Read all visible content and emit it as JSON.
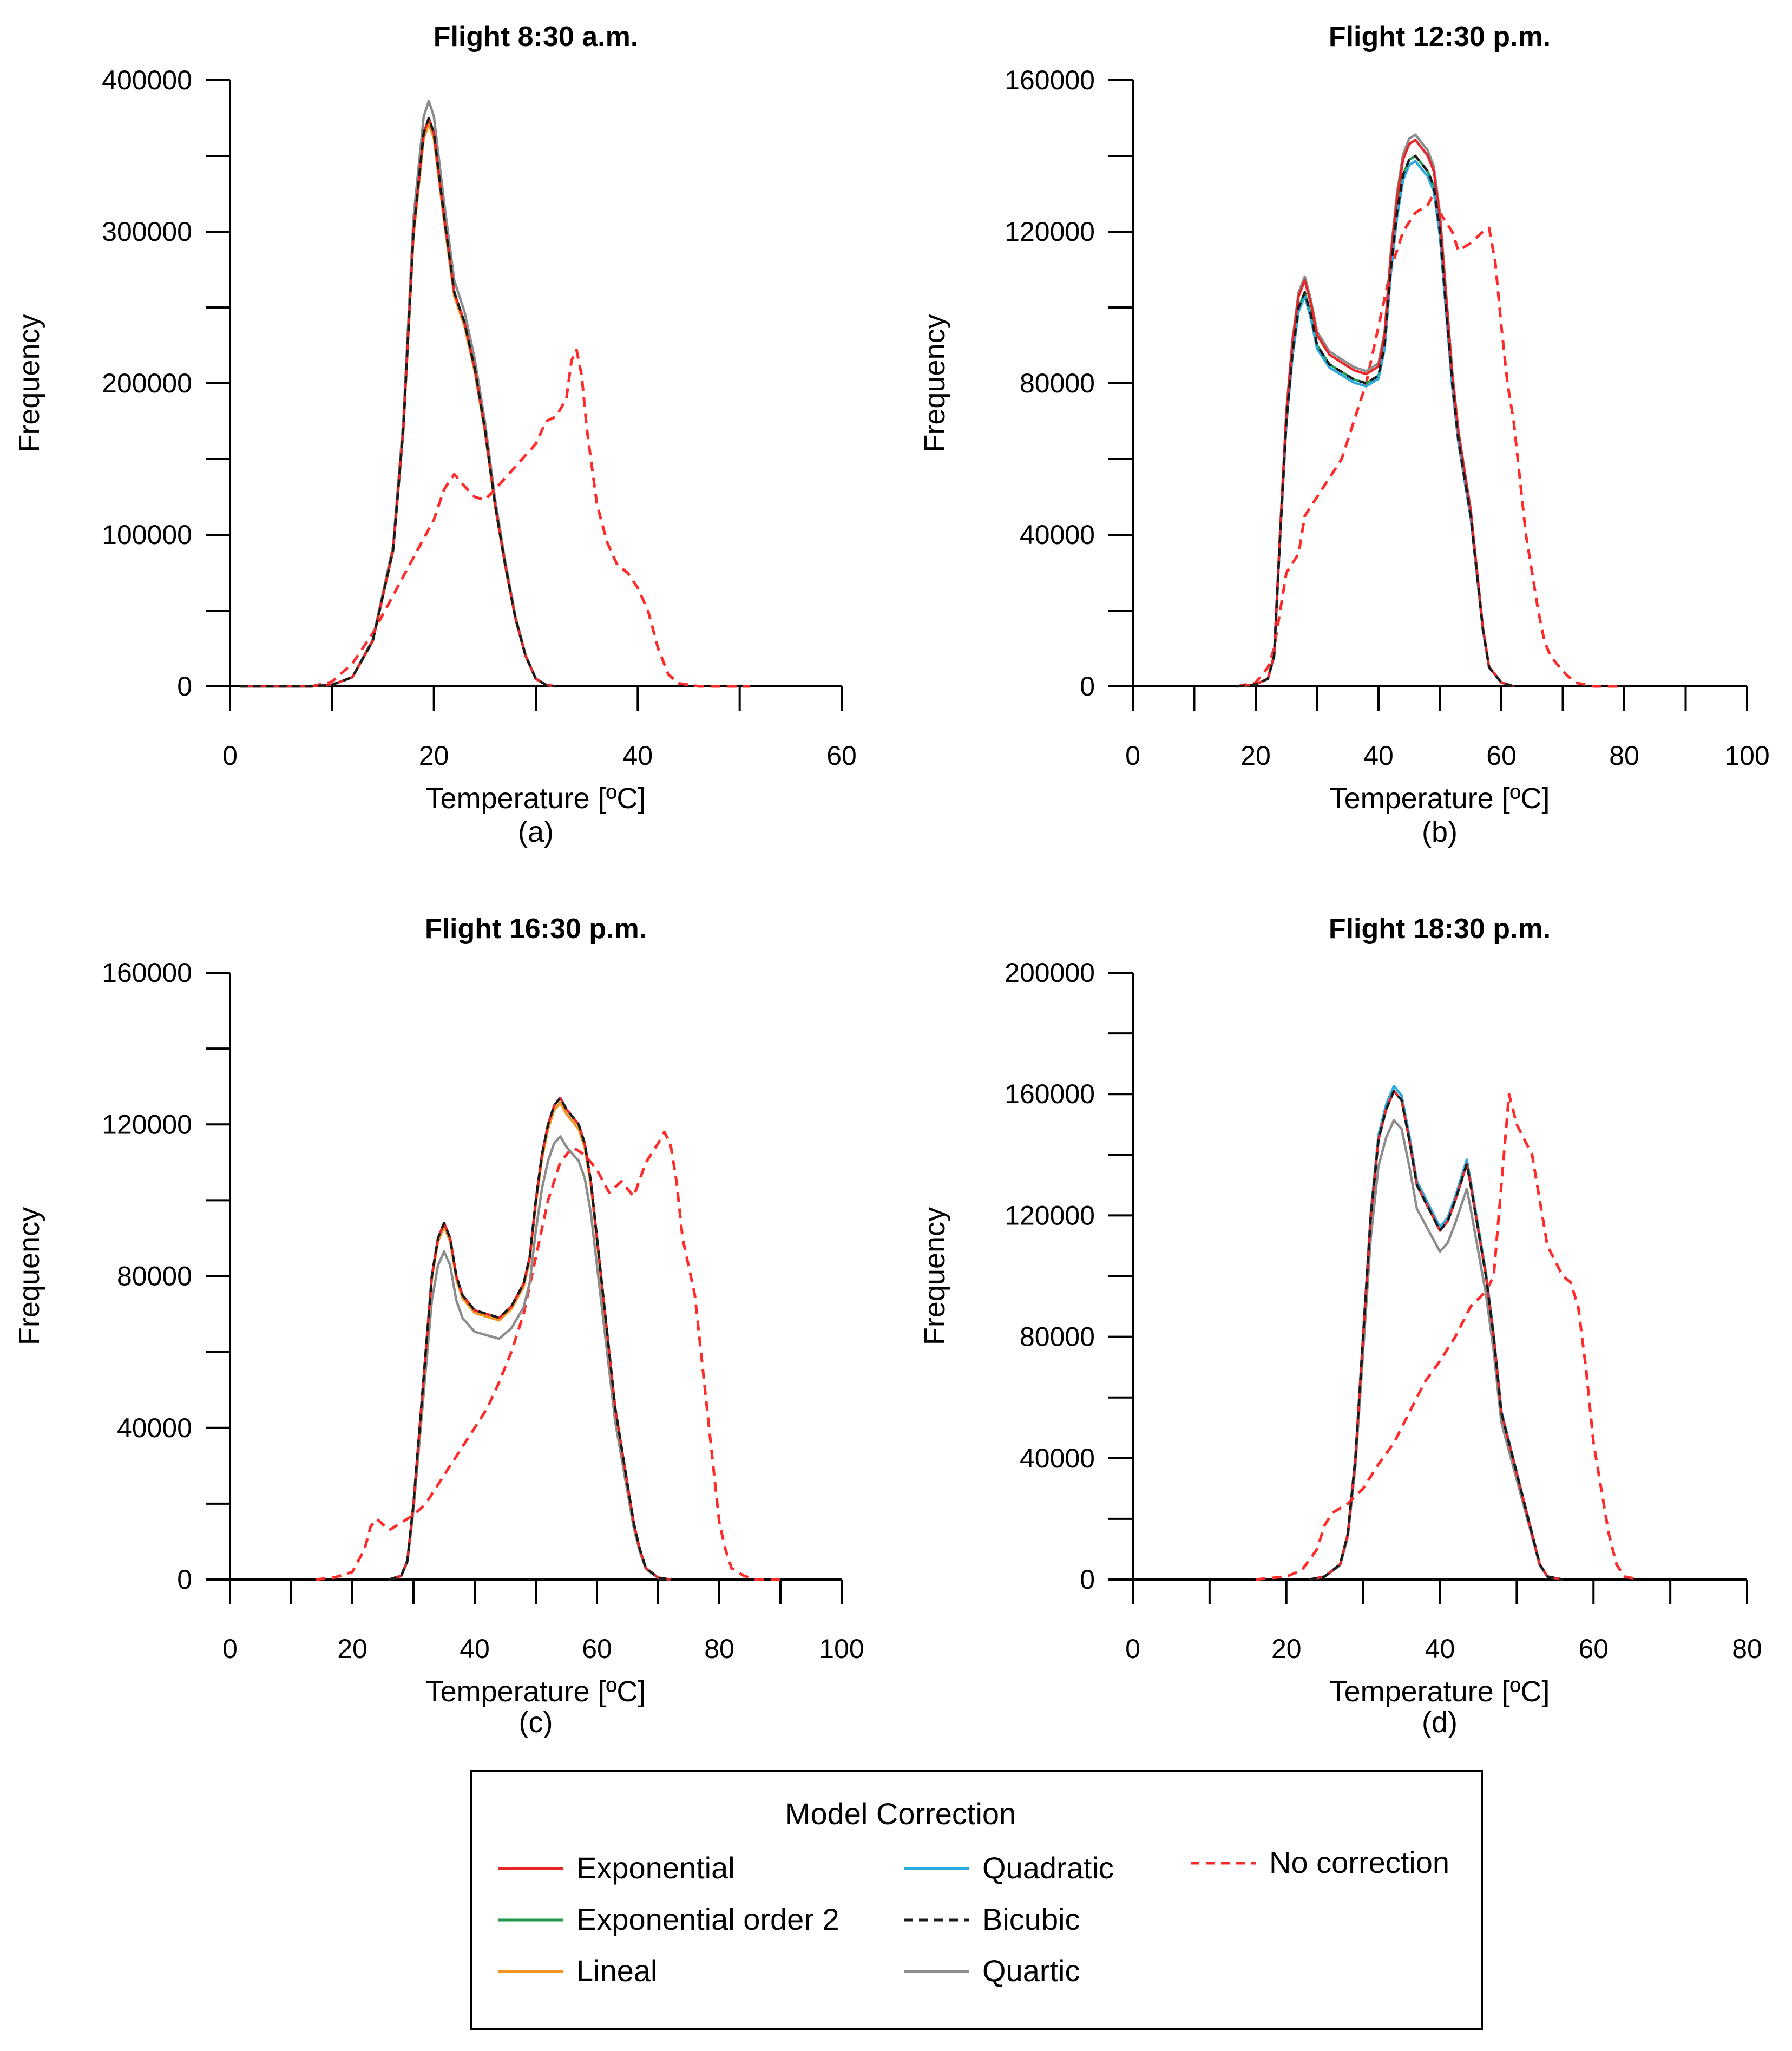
{
  "legend": {
    "title": "Model Correction",
    "entries": [
      {
        "name": "Exponential",
        "color": "#e8262a",
        "dash": false
      },
      {
        "name": "Exponential order 2",
        "color": "#1f9a4c",
        "dash": false
      },
      {
        "name": "Lineal",
        "color": "#f7941d",
        "dash": false
      },
      {
        "name": "Quadratic",
        "color": "#29abe2",
        "dash": false
      },
      {
        "name": "Bicubic",
        "color": "#1a1a1a",
        "dash": true
      },
      {
        "name": "Quartic",
        "color": "#8c8c8c",
        "dash": false
      },
      {
        "name": "No correction",
        "color": "#ff2b2b",
        "dash": true
      }
    ]
  },
  "chart_data": [
    {
      "type": "line",
      "title": "Flight 8:30 a.m.",
      "caption": "(a)",
      "xlabel": "Temperature [ºC]",
      "ylabel": "Frequency",
      "xlim": [
        0,
        60
      ],
      "ylim": [
        0,
        400000
      ],
      "xticks": [
        0,
        20,
        40,
        60
      ],
      "yticks": [
        0,
        100000,
        200000,
        300000,
        400000
      ],
      "corrected": [
        [
          1,
          0
        ],
        [
          8,
          0
        ],
        [
          10,
          1000
        ],
        [
          12,
          6000
        ],
        [
          14,
          30000
        ],
        [
          16,
          90000
        ],
        [
          17,
          170000
        ],
        [
          18,
          300000
        ],
        [
          19,
          365000
        ],
        [
          19.5,
          375000
        ],
        [
          20,
          365000
        ],
        [
          21,
          310000
        ],
        [
          22,
          260000
        ],
        [
          23,
          240000
        ],
        [
          24,
          210000
        ],
        [
          25,
          170000
        ],
        [
          26,
          120000
        ],
        [
          27,
          80000
        ],
        [
          28,
          45000
        ],
        [
          29,
          20000
        ],
        [
          30,
          5000
        ],
        [
          31,
          1000
        ],
        [
          32,
          0
        ]
      ],
      "offsets": {
        "Exponential": 1.0,
        "Exponential order 2": 1.0,
        "Lineal": 0.99,
        "Quadratic": 1.0,
        "Bicubic": 1.0,
        "Quartic": 1.03
      },
      "no_correction": [
        [
          8,
          0
        ],
        [
          10,
          3000
        ],
        [
          12,
          15000
        ],
        [
          14,
          35000
        ],
        [
          16,
          60000
        ],
        [
          18,
          85000
        ],
        [
          20,
          110000
        ],
        [
          21,
          130000
        ],
        [
          22,
          140000
        ],
        [
          23,
          132000
        ],
        [
          24,
          125000
        ],
        [
          25,
          123000
        ],
        [
          26,
          130000
        ],
        [
          28,
          145000
        ],
        [
          30,
          160000
        ],
        [
          31,
          175000
        ],
        [
          32,
          178000
        ],
        [
          33,
          190000
        ],
        [
          33.5,
          215000
        ],
        [
          34,
          222000
        ],
        [
          34.5,
          205000
        ],
        [
          35,
          170000
        ],
        [
          36,
          120000
        ],
        [
          37,
          95000
        ],
        [
          38,
          80000
        ],
        [
          39,
          75000
        ],
        [
          40,
          65000
        ],
        [
          41,
          50000
        ],
        [
          42,
          25000
        ],
        [
          43,
          8000
        ],
        [
          44,
          2000
        ],
        [
          46,
          0
        ],
        [
          51,
          0
        ]
      ]
    },
    {
      "type": "line",
      "title": "Flight 12:30 p.m.",
      "caption": "(b)",
      "xlabel": "Temperature [ºC]",
      "ylabel": "Frequency",
      "xlim": [
        0,
        100
      ],
      "ylim": [
        0,
        160000
      ],
      "xticks": [
        0,
        20,
        40,
        60,
        80,
        100
      ],
      "yticks": [
        0,
        40000,
        80000,
        120000,
        160000
      ],
      "corrected": [
        [
          17,
          0
        ],
        [
          20,
          500
        ],
        [
          22,
          2000
        ],
        [
          23,
          8000
        ],
        [
          24,
          40000
        ],
        [
          25,
          70000
        ],
        [
          26,
          88000
        ],
        [
          27,
          100000
        ],
        [
          28,
          104000
        ],
        [
          29,
          98000
        ],
        [
          30,
          90000
        ],
        [
          32,
          85000
        ],
        [
          34,
          83000
        ],
        [
          36,
          81000
        ],
        [
          38,
          80000
        ],
        [
          40,
          82000
        ],
        [
          41,
          90000
        ],
        [
          42,
          110000
        ],
        [
          43,
          125000
        ],
        [
          44,
          135000
        ],
        [
          45,
          139000
        ],
        [
          46,
          140000
        ],
        [
          47,
          138000
        ],
        [
          48,
          136000
        ],
        [
          49,
          132000
        ],
        [
          50,
          120000
        ],
        [
          51,
          100000
        ],
        [
          52,
          80000
        ],
        [
          53,
          65000
        ],
        [
          54,
          55000
        ],
        [
          55,
          45000
        ],
        [
          56,
          30000
        ],
        [
          57,
          15000
        ],
        [
          58,
          5000
        ],
        [
          60,
          1000
        ],
        [
          62,
          0
        ]
      ],
      "offsets": {
        "Exponential": 1.03,
        "Exponential order 2": 1.0,
        "Lineal": 0.99,
        "Quadratic": 0.99,
        "Bicubic": 1.0,
        "Quartic": 1.04
      },
      "no_correction": [
        [
          17,
          0
        ],
        [
          20,
          1000
        ],
        [
          22,
          5000
        ],
        [
          23,
          10000
        ],
        [
          24,
          20000
        ],
        [
          25,
          30000
        ],
        [
          27,
          35000
        ],
        [
          28,
          45000
        ],
        [
          30,
          50000
        ],
        [
          32,
          55000
        ],
        [
          34,
          60000
        ],
        [
          36,
          70000
        ],
        [
          38,
          80000
        ],
        [
          40,
          95000
        ],
        [
          42,
          110000
        ],
        [
          44,
          120000
        ],
        [
          46,
          125000
        ],
        [
          48,
          127000
        ],
        [
          49,
          130000
        ],
        [
          50,
          125000
        ],
        [
          52,
          120000
        ],
        [
          53,
          115000
        ],
        [
          55,
          117000
        ],
        [
          57,
          120000
        ],
        [
          58,
          121000
        ],
        [
          59,
          112000
        ],
        [
          60,
          95000
        ],
        [
          61,
          80000
        ],
        [
          62,
          70000
        ],
        [
          63,
          55000
        ],
        [
          64,
          40000
        ],
        [
          65,
          30000
        ],
        [
          66,
          20000
        ],
        [
          67,
          12000
        ],
        [
          68,
          8000
        ],
        [
          70,
          4000
        ],
        [
          72,
          1000
        ],
        [
          75,
          0
        ],
        [
          80,
          0
        ]
      ]
    },
    {
      "type": "line",
      "title": "Flight 16:30 p.m.",
      "caption": "(c)",
      "xlabel": "Temperature [ºC]",
      "ylabel": "Frequency",
      "xlim": [
        0,
        100
      ],
      "ylim": [
        0,
        160000
      ],
      "xticks": [
        0,
        20,
        40,
        60,
        80,
        100
      ],
      "yticks": [
        0,
        40000,
        80000,
        120000,
        160000
      ],
      "corrected": [
        [
          26,
          0
        ],
        [
          28,
          1000
        ],
        [
          29,
          5000
        ],
        [
          30,
          20000
        ],
        [
          31,
          40000
        ],
        [
          32,
          60000
        ],
        [
          33,
          80000
        ],
        [
          34,
          90000
        ],
        [
          35,
          94000
        ],
        [
          36,
          90000
        ],
        [
          37,
          80000
        ],
        [
          38,
          75000
        ],
        [
          40,
          71000
        ],
        [
          42,
          70000
        ],
        [
          44,
          69000
        ],
        [
          46,
          72000
        ],
        [
          48,
          78000
        ],
        [
          49,
          85000
        ],
        [
          50,
          100000
        ],
        [
          51,
          112000
        ],
        [
          52,
          120000
        ],
        [
          53,
          125000
        ],
        [
          54,
          127000
        ],
        [
          55,
          124000
        ],
        [
          56,
          122000
        ],
        [
          57,
          120000
        ],
        [
          58,
          115000
        ],
        [
          59,
          105000
        ],
        [
          60,
          90000
        ],
        [
          61,
          75000
        ],
        [
          62,
          60000
        ],
        [
          63,
          45000
        ],
        [
          64,
          35000
        ],
        [
          65,
          25000
        ],
        [
          66,
          15000
        ],
        [
          67,
          8000
        ],
        [
          68,
          3000
        ],
        [
          70,
          500
        ],
        [
          72,
          0
        ]
      ],
      "offsets": {
        "Exponential": 1.0,
        "Exponential order 2": 1.0,
        "Lineal": 0.99,
        "Quadratic": 1.0,
        "Bicubic": 1.0,
        "Quartic": 0.92
      },
      "no_correction": [
        [
          14,
          0
        ],
        [
          17,
          500
        ],
        [
          20,
          2000
        ],
        [
          22,
          8000
        ],
        [
          23,
          14000
        ],
        [
          24,
          16000
        ],
        [
          26,
          13000
        ],
        [
          28,
          15000
        ],
        [
          30,
          17000
        ],
        [
          32,
          20000
        ],
        [
          34,
          25000
        ],
        [
          36,
          30000
        ],
        [
          38,
          35000
        ],
        [
          40,
          40000
        ],
        [
          42,
          45000
        ],
        [
          44,
          52000
        ],
        [
          46,
          60000
        ],
        [
          48,
          70000
        ],
        [
          50,
          85000
        ],
        [
          52,
          100000
        ],
        [
          54,
          110000
        ],
        [
          56,
          114000
        ],
        [
          58,
          112000
        ],
        [
          60,
          108000
        ],
        [
          62,
          102000
        ],
        [
          64,
          105000
        ],
        [
          66,
          101000
        ],
        [
          68,
          110000
        ],
        [
          70,
          115000
        ],
        [
          71,
          118000
        ],
        [
          72,
          115000
        ],
        [
          73,
          105000
        ],
        [
          74,
          90000
        ],
        [
          76,
          75000
        ],
        [
          77,
          60000
        ],
        [
          78,
          45000
        ],
        [
          79,
          30000
        ],
        [
          80,
          15000
        ],
        [
          81,
          8000
        ],
        [
          82,
          3000
        ],
        [
          84,
          1000
        ],
        [
          86,
          0
        ],
        [
          90,
          0
        ]
      ]
    },
    {
      "type": "line",
      "title": "Flight 18:30 p.m.",
      "caption": "(d)",
      "xlabel": "Temperature [ºC]",
      "ylabel": "Frequency",
      "xlim": [
        0,
        80
      ],
      "ylim": [
        0,
        200000
      ],
      "xticks": [
        0,
        20,
        40,
        60,
        80
      ],
      "yticks": [
        0,
        40000,
        80000,
        120000,
        160000,
        200000
      ],
      "corrected": [
        [
          23,
          0
        ],
        [
          25,
          1000
        ],
        [
          27,
          5000
        ],
        [
          28,
          15000
        ],
        [
          29,
          40000
        ],
        [
          30,
          80000
        ],
        [
          31,
          120000
        ],
        [
          32,
          145000
        ],
        [
          33,
          155000
        ],
        [
          34,
          161000
        ],
        [
          35,
          158000
        ],
        [
          36,
          145000
        ],
        [
          37,
          130000
        ],
        [
          38,
          125000
        ],
        [
          39,
          120000
        ],
        [
          40,
          115000
        ],
        [
          41,
          118000
        ],
        [
          42,
          125000
        ],
        [
          43,
          133000
        ],
        [
          43.5,
          137000
        ],
        [
          44,
          130000
        ],
        [
          45,
          115000
        ],
        [
          46,
          100000
        ],
        [
          47,
          80000
        ],
        [
          48,
          55000
        ],
        [
          49,
          45000
        ],
        [
          50,
          35000
        ],
        [
          51,
          25000
        ],
        [
          52,
          15000
        ],
        [
          53,
          5000
        ],
        [
          54,
          1000
        ],
        [
          56,
          0
        ]
      ],
      "offsets": {
        "Exponential": 1.0,
        "Exponential order 2": 1.0,
        "Lineal": 1.01,
        "Quadratic": 1.01,
        "Bicubic": 1.0,
        "Quartic": 0.94
      },
      "no_correction": [
        [
          16,
          0
        ],
        [
          20,
          1000
        ],
        [
          22,
          3000
        ],
        [
          24,
          10000
        ],
        [
          25,
          18000
        ],
        [
          26,
          22000
        ],
        [
          28,
          25000
        ],
        [
          30,
          30000
        ],
        [
          32,
          38000
        ],
        [
          34,
          45000
        ],
        [
          36,
          55000
        ],
        [
          38,
          65000
        ],
        [
          40,
          72000
        ],
        [
          42,
          80000
        ],
        [
          44,
          90000
        ],
        [
          46,
          95000
        ],
        [
          47,
          100000
        ],
        [
          48,
          130000
        ],
        [
          49,
          160000
        ],
        [
          50,
          150000
        ],
        [
          51,
          145000
        ],
        [
          52,
          140000
        ],
        [
          53,
          125000
        ],
        [
          54,
          110000
        ],
        [
          55,
          105000
        ],
        [
          56,
          100000
        ],
        [
          57,
          98000
        ],
        [
          58,
          90000
        ],
        [
          59,
          70000
        ],
        [
          60,
          45000
        ],
        [
          61,
          30000
        ],
        [
          62,
          15000
        ],
        [
          63,
          5000
        ],
        [
          64,
          1000
        ],
        [
          66,
          0
        ]
      ]
    }
  ]
}
